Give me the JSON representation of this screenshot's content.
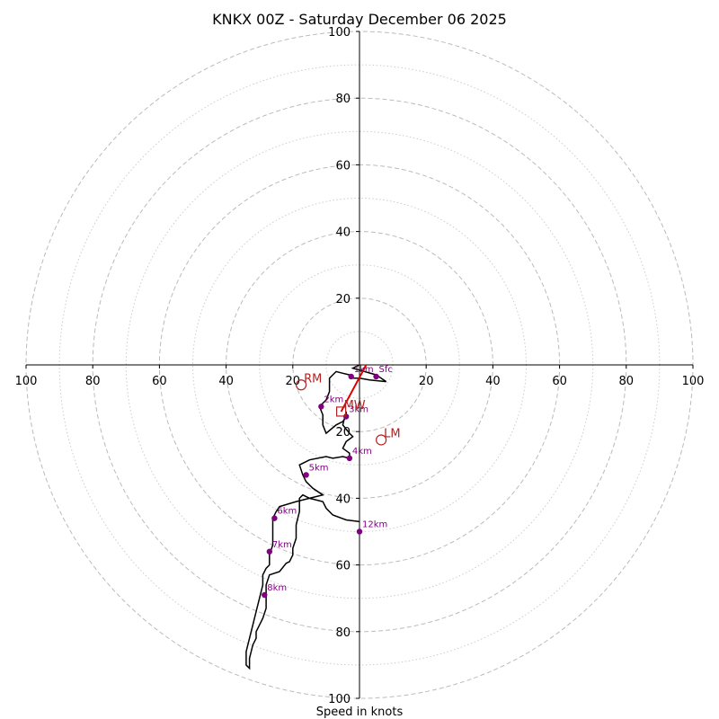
{
  "chart_data": {
    "type": "hodograph",
    "title": "KNKX 00Z - Saturday December 06 2025",
    "xlabel": "Speed in knots",
    "units": "knots",
    "max_speed": 100,
    "ring_step": 20,
    "minor_ring_step": 10,
    "x_ticks": [
      "100",
      "80",
      "60",
      "40",
      "20",
      "20",
      "40",
      "60",
      "80",
      "100"
    ],
    "x_tick_values": [
      -100,
      -80,
      -60,
      -40,
      -20,
      20,
      40,
      60,
      80,
      100
    ],
    "y_ticks": [
      "100",
      "80",
      "60",
      "40",
      "20",
      "20",
      "40",
      "60",
      "80",
      "100"
    ],
    "y_tick_values": [
      100,
      80,
      60,
      40,
      20,
      -20,
      -40,
      -60,
      -80,
      -100
    ],
    "colors": {
      "trace": "#000000",
      "height_marker": "#800080",
      "motion": "#b22222",
      "shear_vector": "#dd0000",
      "major_ring": "#bbbbbb",
      "minor_ring": "#cccccc"
    },
    "trace": [
      [
        0,
        0
      ],
      [
        -2,
        -1
      ],
      [
        5,
        -3
      ],
      [
        8,
        -5
      ],
      [
        3,
        -4.5
      ],
      [
        0,
        -4
      ],
      [
        -2,
        -4
      ],
      [
        -3,
        -3
      ],
      [
        -5,
        -2.5
      ],
      [
        -7,
        -2
      ],
      [
        -9,
        -4
      ],
      [
        -9,
        -8
      ],
      [
        -10,
        -10.5
      ],
      [
        -12,
        -12.5
      ],
      [
        -11,
        -15
      ],
      [
        -11,
        -18
      ],
      [
        -10,
        -20.5
      ],
      [
        -7,
        -18
      ],
      [
        -5,
        -17
      ],
      [
        -4,
        -15.5
      ],
      [
        -4,
        -14
      ],
      [
        -5,
        -18
      ],
      [
        -3,
        -20.5
      ],
      [
        -2,
        -21.5
      ],
      [
        -4,
        -23
      ],
      [
        -5,
        -25
      ],
      [
        -3,
        -26.5
      ],
      [
        -3,
        -28
      ],
      [
        -5,
        -27.5
      ],
      [
        -8,
        -28
      ],
      [
        -10,
        -27.5
      ],
      [
        -15,
        -28.5
      ],
      [
        -18,
        -30
      ],
      [
        -17,
        -33
      ],
      [
        -16,
        -35
      ],
      [
        -14,
        -37
      ],
      [
        -11,
        -39
      ],
      [
        -15,
        -40
      ],
      [
        -19,
        -41
      ],
      [
        -24,
        -42.5
      ],
      [
        -25,
        -44
      ],
      [
        -26,
        -46
      ],
      [
        -26,
        -50
      ],
      [
        -26,
        -54
      ],
      [
        -27,
        -57
      ],
      [
        -27,
        -60
      ],
      [
        -28,
        -61
      ],
      [
        -29,
        -63
      ],
      [
        -29,
        -66
      ],
      [
        -30,
        -70
      ],
      [
        -31,
        -74
      ],
      [
        -32,
        -78
      ],
      [
        -33,
        -82
      ],
      [
        -34,
        -86
      ],
      [
        -34,
        -90
      ],
      [
        -33,
        -91
      ],
      [
        -33,
        -88
      ],
      [
        -32,
        -84
      ],
      [
        -31,
        -82
      ],
      [
        -31,
        -80
      ],
      [
        -30,
        -78
      ],
      [
        -29,
        -76
      ],
      [
        -28,
        -73
      ],
      [
        -28,
        -69
      ],
      [
        -28,
        -66
      ],
      [
        -27,
        -63
      ],
      [
        -24,
        -62
      ],
      [
        -22,
        -59.5
      ],
      [
        -21,
        -59
      ],
      [
        -20,
        -57
      ],
      [
        -20,
        -55
      ],
      [
        -19,
        -52
      ],
      [
        -19,
        -48
      ],
      [
        -18,
        -44
      ],
      [
        -18,
        -40
      ],
      [
        -17,
        -39
      ],
      [
        -15,
        -40
      ],
      [
        -11,
        -41
      ],
      [
        -10,
        -43
      ],
      [
        -8,
        -45
      ],
      [
        -4,
        -46.5
      ],
      [
        0,
        -47
      ]
    ],
    "height_points": [
      {
        "label": "Sfc",
        "u": 5,
        "v": -3.5
      },
      {
        "label": "1km",
        "u": -2.5,
        "v": -3.5
      },
      {
        "label": "2km",
        "u": -11.5,
        "v": -12.5
      },
      {
        "label": "3km",
        "u": -4,
        "v": -15.5
      },
      {
        "label": "4km",
        "u": -3,
        "v": -28
      },
      {
        "label": "5km",
        "u": -16,
        "v": -33
      },
      {
        "label": "6km",
        "u": -25.5,
        "v": -46
      },
      {
        "label": "7km",
        "u": -27,
        "v": -56
      },
      {
        "label": "8km",
        "u": -28.5,
        "v": -69
      },
      {
        "label": "12km",
        "u": 0,
        "v": -50
      }
    ],
    "storm_motions": [
      {
        "label": "RM",
        "u": -17.5,
        "v": -6,
        "marker": "circle"
      },
      {
        "label": "MW",
        "u": -5.5,
        "v": -14,
        "marker": "square"
      },
      {
        "label": "LM",
        "u": 6.5,
        "v": -22.5,
        "marker": "circle"
      }
    ],
    "shear_vector": {
      "from": [
        2,
        0
      ],
      "to": [
        -5.5,
        -14
      ]
    }
  }
}
